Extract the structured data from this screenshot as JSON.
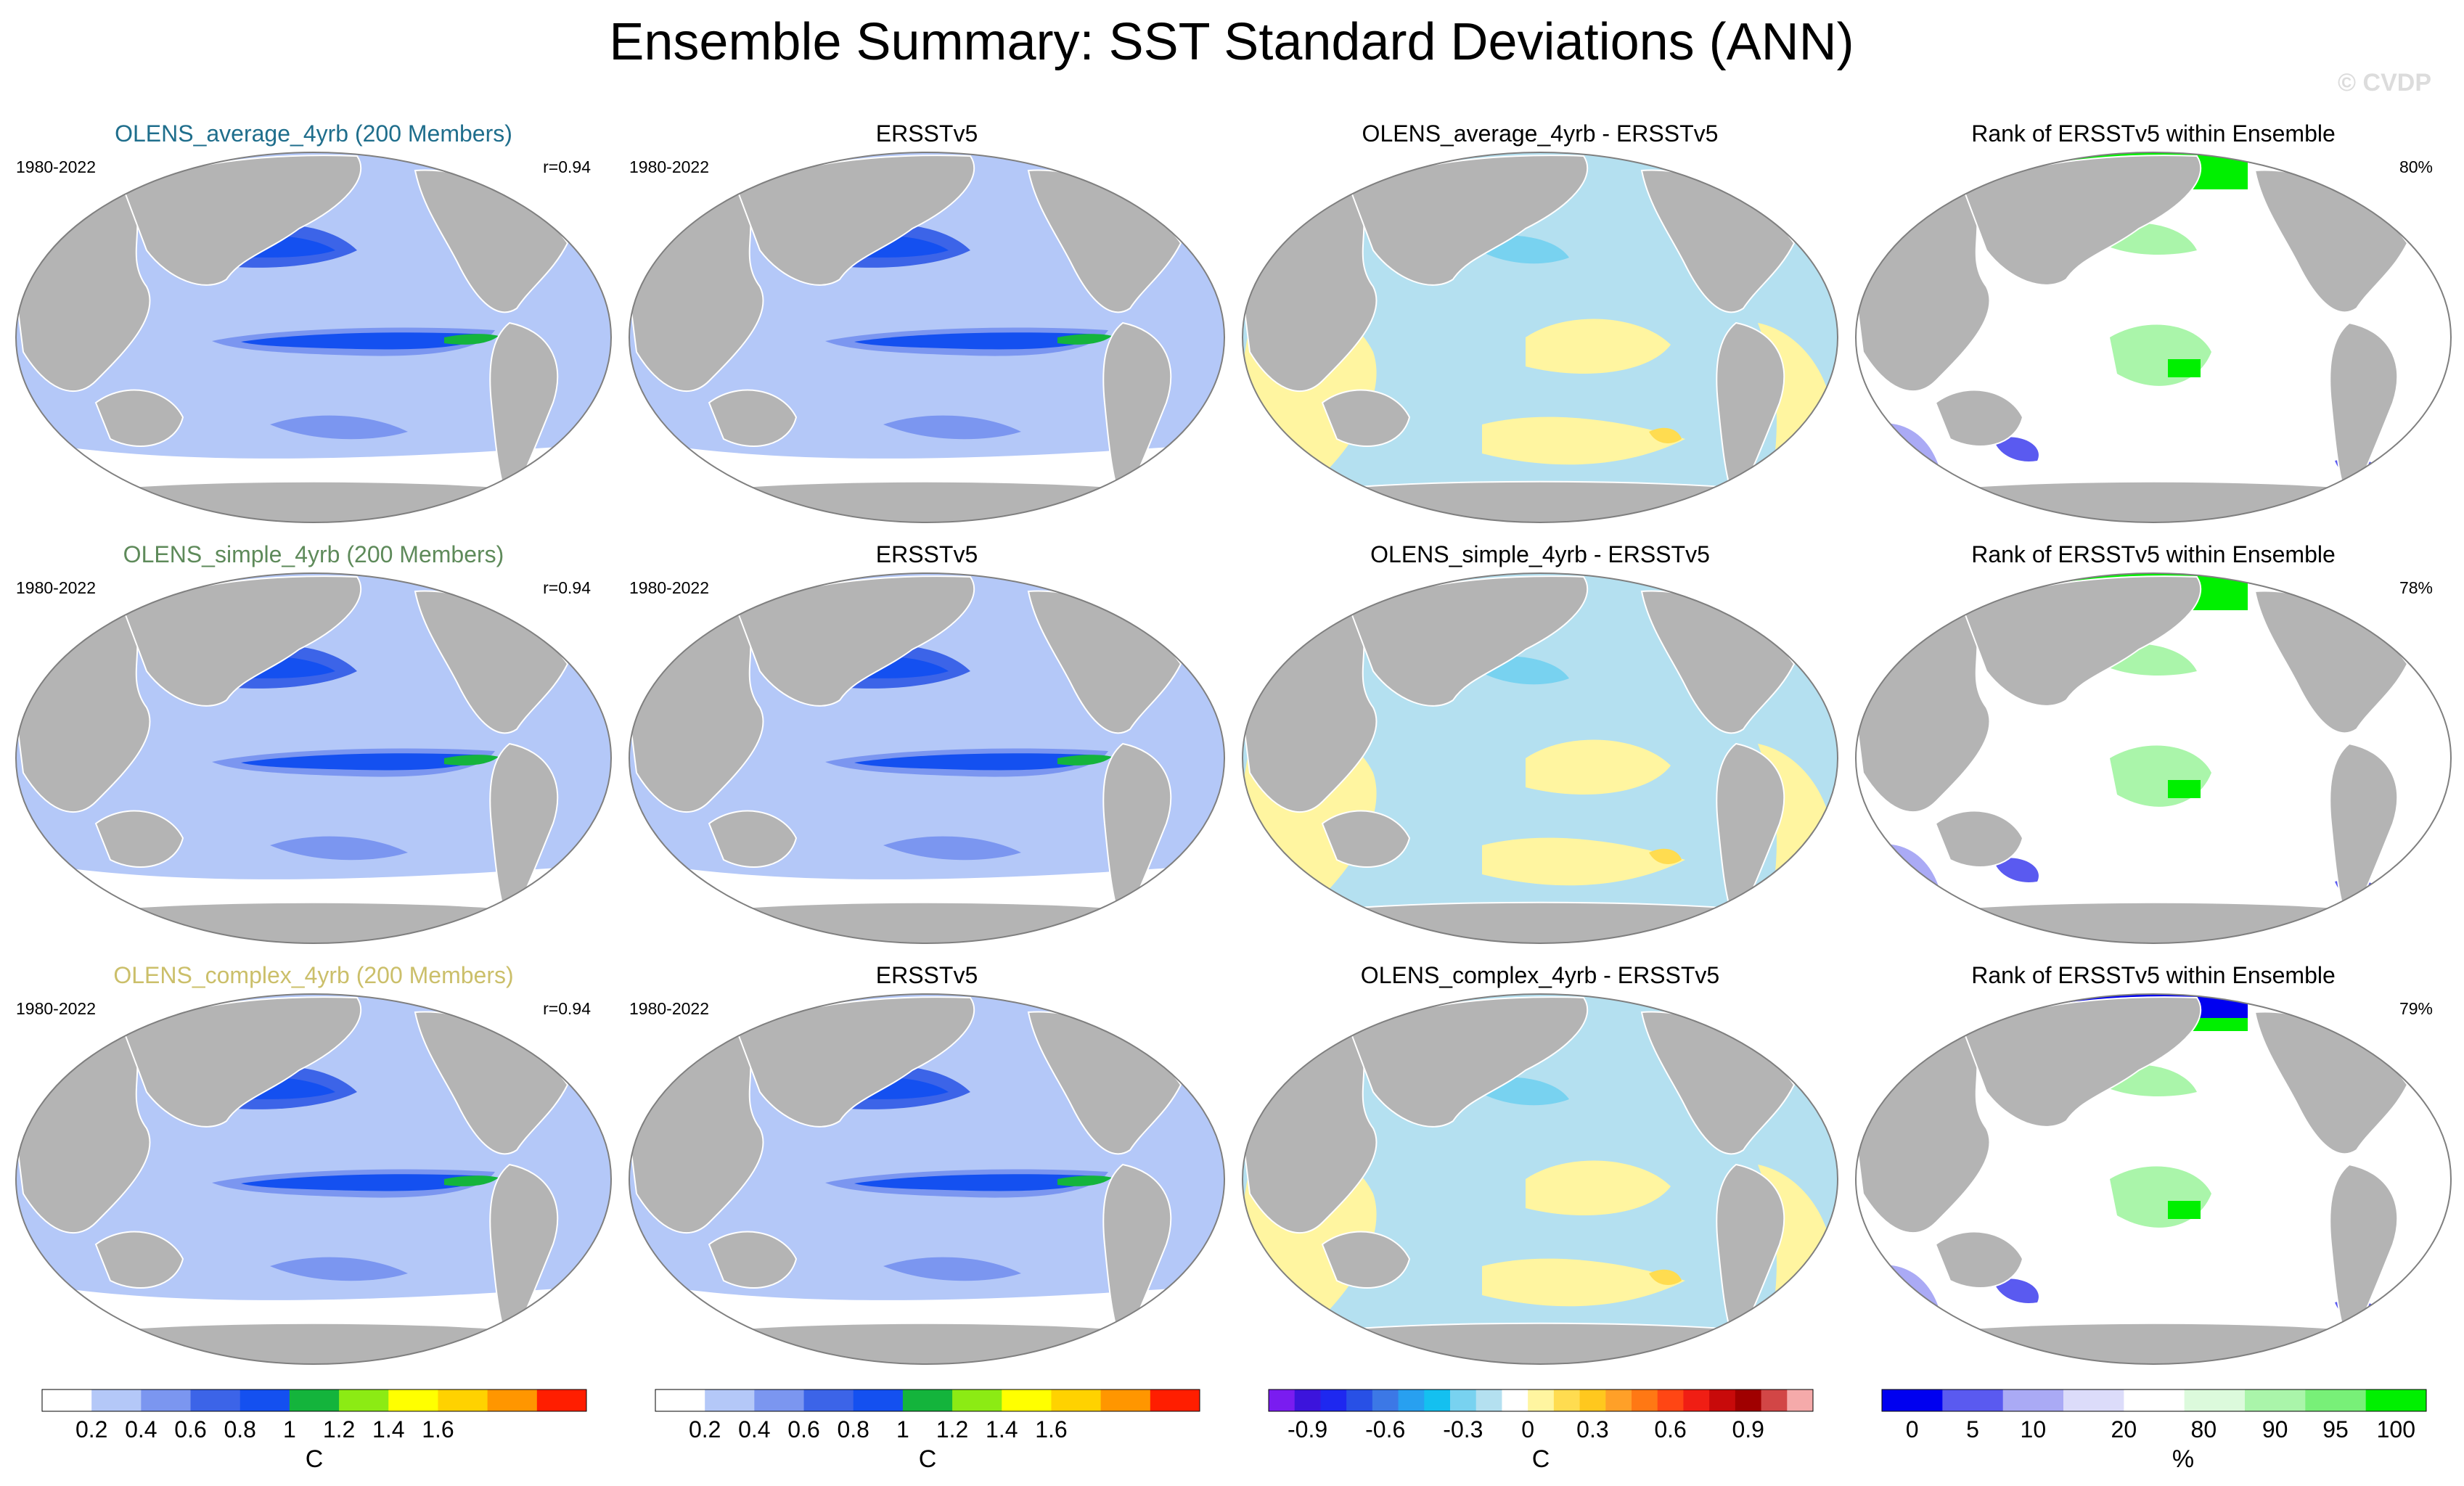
{
  "title": "Ensemble Summary: SST Standard Deviations (ANN)",
  "watermark": "© CVDP",
  "period": "1980-2022",
  "chart_data": {
    "type": "map-panel-grid",
    "variable": "SST standard deviation",
    "season": "ANN",
    "rows": [
      {
        "ensemble": {
          "title": "OLENS_average_4yrb (200 Members)",
          "title_color": "#1f6e8c",
          "period": "1980-2022",
          "r": "r=0.94"
        },
        "obs": {
          "title": "ERSSTv5",
          "period": "1980-2022"
        },
        "diff": {
          "title": "OLENS_average_4yrb - ERSSTv5"
        },
        "rank": {
          "title": "Rank of ERSSTv5 within Ensemble",
          "pct": "80%"
        }
      },
      {
        "ensemble": {
          "title": "OLENS_simple_4yrb (200 Members)",
          "title_color": "#5e8a5a",
          "period": "1980-2022",
          "r": "r=0.94"
        },
        "obs": {
          "title": "ERSSTv5",
          "period": "1980-2022"
        },
        "diff": {
          "title": "OLENS_simple_4yrb - ERSSTv5"
        },
        "rank": {
          "title": "Rank of ERSSTv5 within Ensemble",
          "pct": "78%"
        }
      },
      {
        "ensemble": {
          "title": "OLENS_complex_4yrb (200 Members)",
          "title_color": "#cbbf6a",
          "period": "1980-2022",
          "r": "r=0.94"
        },
        "obs": {
          "title": "ERSSTv5",
          "period": "1980-2022"
        },
        "diff": {
          "title": "OLENS_complex_4yrb - ERSSTv5"
        },
        "rank": {
          "title": "Rank of ERSSTv5 within Ensemble",
          "pct": "79%"
        }
      }
    ],
    "colorbars": [
      {
        "name": "std",
        "unit": "C",
        "colors": [
          "#ffffff",
          "#b4c8f8",
          "#7b96f0",
          "#3c64e8",
          "#1450f0",
          "#14b43c",
          "#8ceb14",
          "#ffff00",
          "#ffd200",
          "#ff9600",
          "#ff1e00"
        ],
        "tick_labels": [
          "0.2",
          "0.4",
          "0.6",
          "0.8",
          "1",
          "1.2",
          "1.4",
          "1.6"
        ]
      },
      {
        "name": "std-obs",
        "unit": "C",
        "colors": [
          "#ffffff",
          "#b4c8f8",
          "#7b96f0",
          "#3c64e8",
          "#1450f0",
          "#14b43c",
          "#8ceb14",
          "#ffff00",
          "#ffd200",
          "#ff9600",
          "#ff1e00"
        ],
        "tick_labels": [
          "0.2",
          "0.4",
          "0.6",
          "0.8",
          "1",
          "1.2",
          "1.4",
          "1.6"
        ]
      },
      {
        "name": "diff",
        "unit": "C",
        "colors": [
          "#7a1cf0",
          "#3c14dc",
          "#1e28f0",
          "#2850e6",
          "#3c78e6",
          "#28a0f0",
          "#14c0f0",
          "#78d2f0",
          "#b4e0f0",
          "#ffffff",
          "#fff5a0",
          "#ffdc50",
          "#ffc81e",
          "#ffa028",
          "#ff7814",
          "#ff4614",
          "#f01e14",
          "#c80a0a",
          "#a00000",
          "#d24646",
          "#f5aaaa"
        ],
        "tick_labels": [
          "-0.9",
          "-0.6",
          "-0.3",
          "0",
          "0.3",
          "0.6",
          "0.9"
        ]
      },
      {
        "name": "rank",
        "unit": "%",
        "colors": [
          "#0000f0",
          "#5a5af0",
          "#aaaaf5",
          "#dcdcfa",
          "#ffffff",
          "#dcfadc",
          "#aaf5aa",
          "#78f078",
          "#00f000"
        ],
        "tick_labels": [
          "0",
          "5",
          "10",
          "20",
          "80",
          "90",
          "95",
          "100"
        ]
      }
    ]
  }
}
